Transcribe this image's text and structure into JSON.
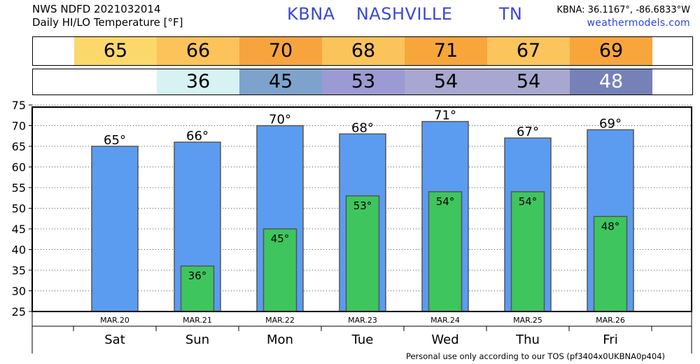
{
  "header": {
    "line1": "NWS NDFD 2021032014",
    "line2": "Daily HI/LO Temperature [°F]",
    "station": "KBNA",
    "city": "NASHVILLE",
    "state": "TN",
    "coords": "KBNA: 36.1167°, -86.6833°W",
    "site": "weathermodels.com"
  },
  "footer": "Personal use only according to our TOS (pf3404x0UKBNA0p404)",
  "colors": {
    "hi_bar": "#5b9cf0",
    "lo_bar": "#3ec55e",
    "hi_cells": [
      "#fcd86b",
      "#fbc35a",
      "#f7a43e",
      "#fac45b",
      "#f8a63c",
      "#fbc45c",
      "#f8a63c"
    ],
    "lo_cells": [
      "#ffffff",
      "#d7f2f2",
      "#7da2cb",
      "#9c9ad2",
      "#a7a7cf",
      "#a7a7cf",
      "#7682b7"
    ]
  },
  "chart_data": {
    "type": "bar",
    "categories": [
      "MAR.20",
      "MAR.21",
      "MAR.22",
      "MAR.23",
      "MAR.24",
      "MAR.25",
      "MAR.26"
    ],
    "days": [
      "Sat",
      "Sun",
      "Mon",
      "Tue",
      "Wed",
      "Thu",
      "Fri"
    ],
    "series": [
      {
        "values": [
          65,
          66,
          70,
          68,
          71,
          67,
          69
        ]
      },
      {
        "values": [
          null,
          36,
          45,
          53,
          54,
          54,
          48
        ]
      }
    ],
    "hi_labels": [
      "65°",
      "66°",
      "70°",
      "68°",
      "71°",
      "67°",
      "69°"
    ],
    "lo_labels": [
      "",
      "36°",
      "45°",
      "53°",
      "54°",
      "54°",
      "48°"
    ],
    "hi_strip": [
      "65",
      "66",
      "70",
      "68",
      "71",
      "67",
      "69"
    ],
    "lo_strip": [
      "",
      "36",
      "45",
      "53",
      "54",
      "54",
      "48"
    ],
    "yticks": [
      "25",
      "30",
      "35",
      "40",
      "45",
      "50",
      "55",
      "60",
      "65",
      "70",
      "75"
    ],
    "ylim": [
      25,
      75
    ],
    "grid": "horizontal-dotted"
  }
}
